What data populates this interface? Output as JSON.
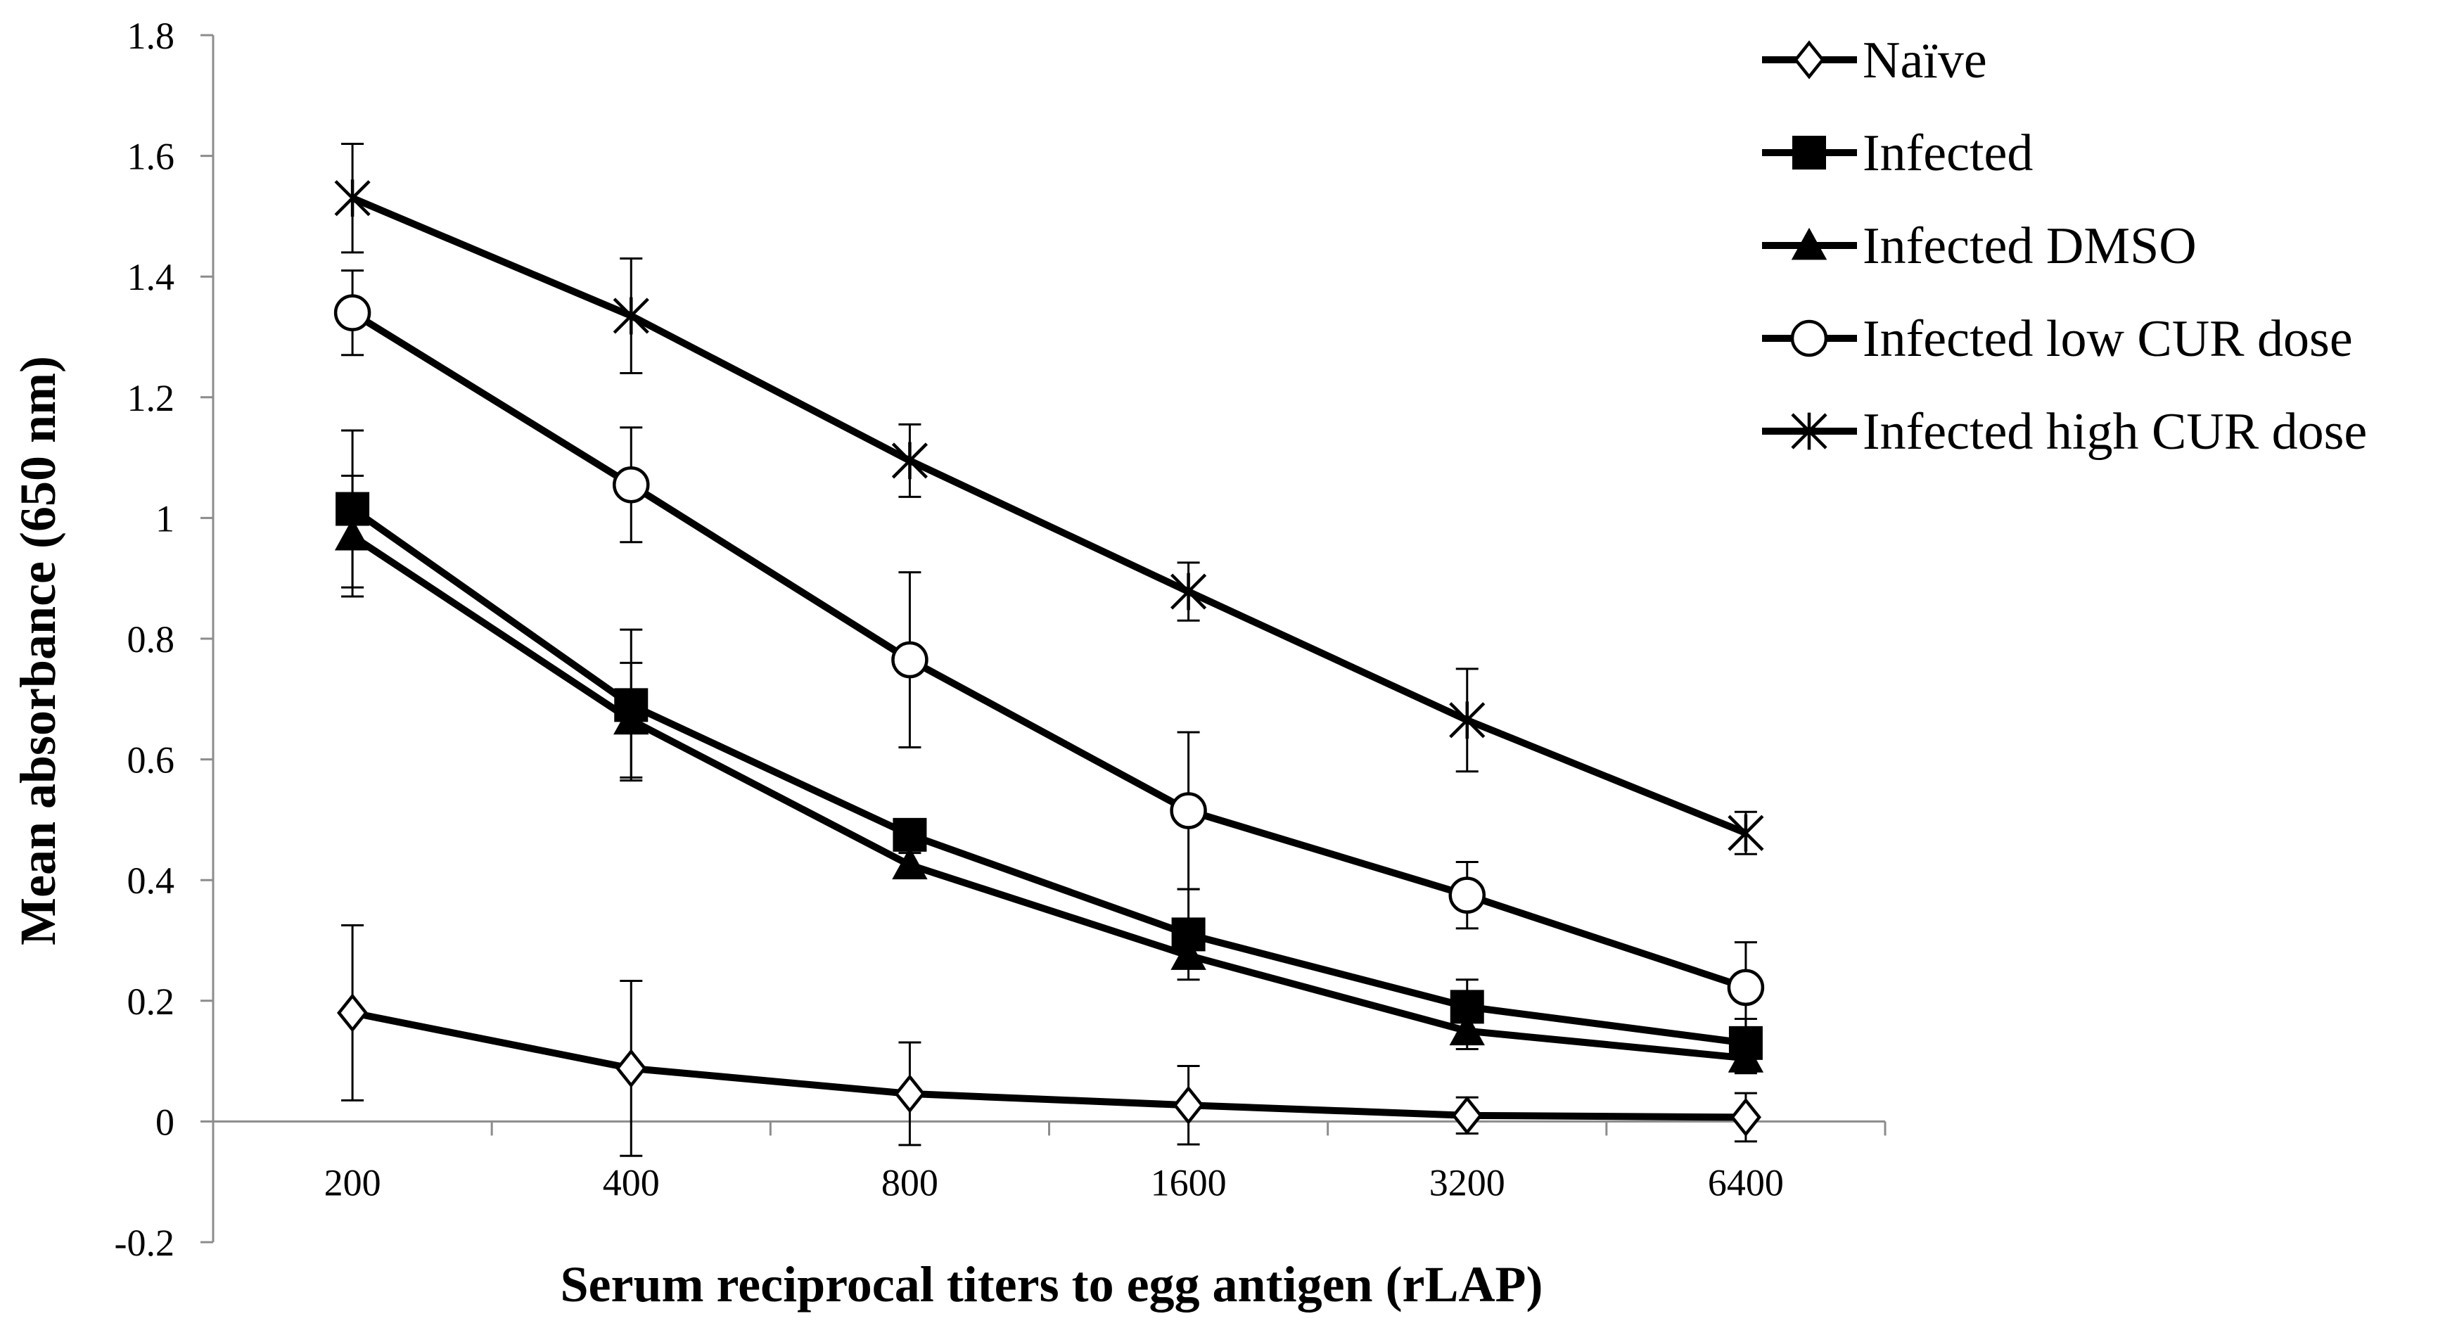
{
  "chart_data": {
    "type": "line",
    "title": "",
    "xlabel": "Serum reciprocal titers  to egg antigen (rLAP)",
    "ylabel": "Mean absorbance (650 nm)",
    "categories": [
      "200",
      "400",
      "800",
      "1600",
      "3200",
      "6400"
    ],
    "ylim": [
      -0.2,
      1.8
    ],
    "yticks": [
      -0.2,
      0,
      0.2,
      0.4,
      0.6,
      0.8,
      1,
      1.2,
      1.4,
      1.6,
      1.8
    ],
    "ytick_labels": [
      "-0.2",
      "0",
      "0.2",
      "0.4",
      "0.6",
      "0.8",
      "1",
      "1.2",
      "1.4",
      "1.6",
      "1.8"
    ],
    "grid": false,
    "legend_position": "top-right",
    "series": [
      {
        "name": "Naïve",
        "marker": "diamond-open",
        "values": [
          0.18,
          0.088,
          0.046,
          0.027,
          0.01,
          0.007
        ],
        "errors": [
          0.145,
          0.145,
          0.085,
          0.065,
          0.03,
          0.04
        ]
      },
      {
        "name": "Infected",
        "marker": "square-filled",
        "values": [
          1.015,
          0.69,
          0.475,
          0.31,
          0.19,
          0.13
        ],
        "errors": [
          0.13,
          0.125,
          0.02,
          0.075,
          0.045,
          0.04
        ]
      },
      {
        "name": "Infected DMSO",
        "marker": "triangle-filled",
        "values": [
          0.97,
          0.665,
          0.425,
          0.275,
          0.15,
          0.105
        ],
        "errors": [
          0.1,
          0.095,
          0.02,
          0.02,
          0.03,
          0.025
        ]
      },
      {
        "name": "Infected low CUR dose",
        "marker": "circle-open",
        "values": [
          1.34,
          1.055,
          0.765,
          0.515,
          0.375,
          0.222
        ],
        "errors": [
          0.07,
          0.095,
          0.145,
          0.13,
          0.055,
          0.075
        ]
      },
      {
        "name": "Infected high CUR dose",
        "marker": "star",
        "values": [
          1.53,
          1.335,
          1.095,
          0.878,
          0.665,
          0.478
        ],
        "errors": [
          0.09,
          0.095,
          0.06,
          0.048,
          0.085,
          0.035
        ]
      }
    ]
  }
}
